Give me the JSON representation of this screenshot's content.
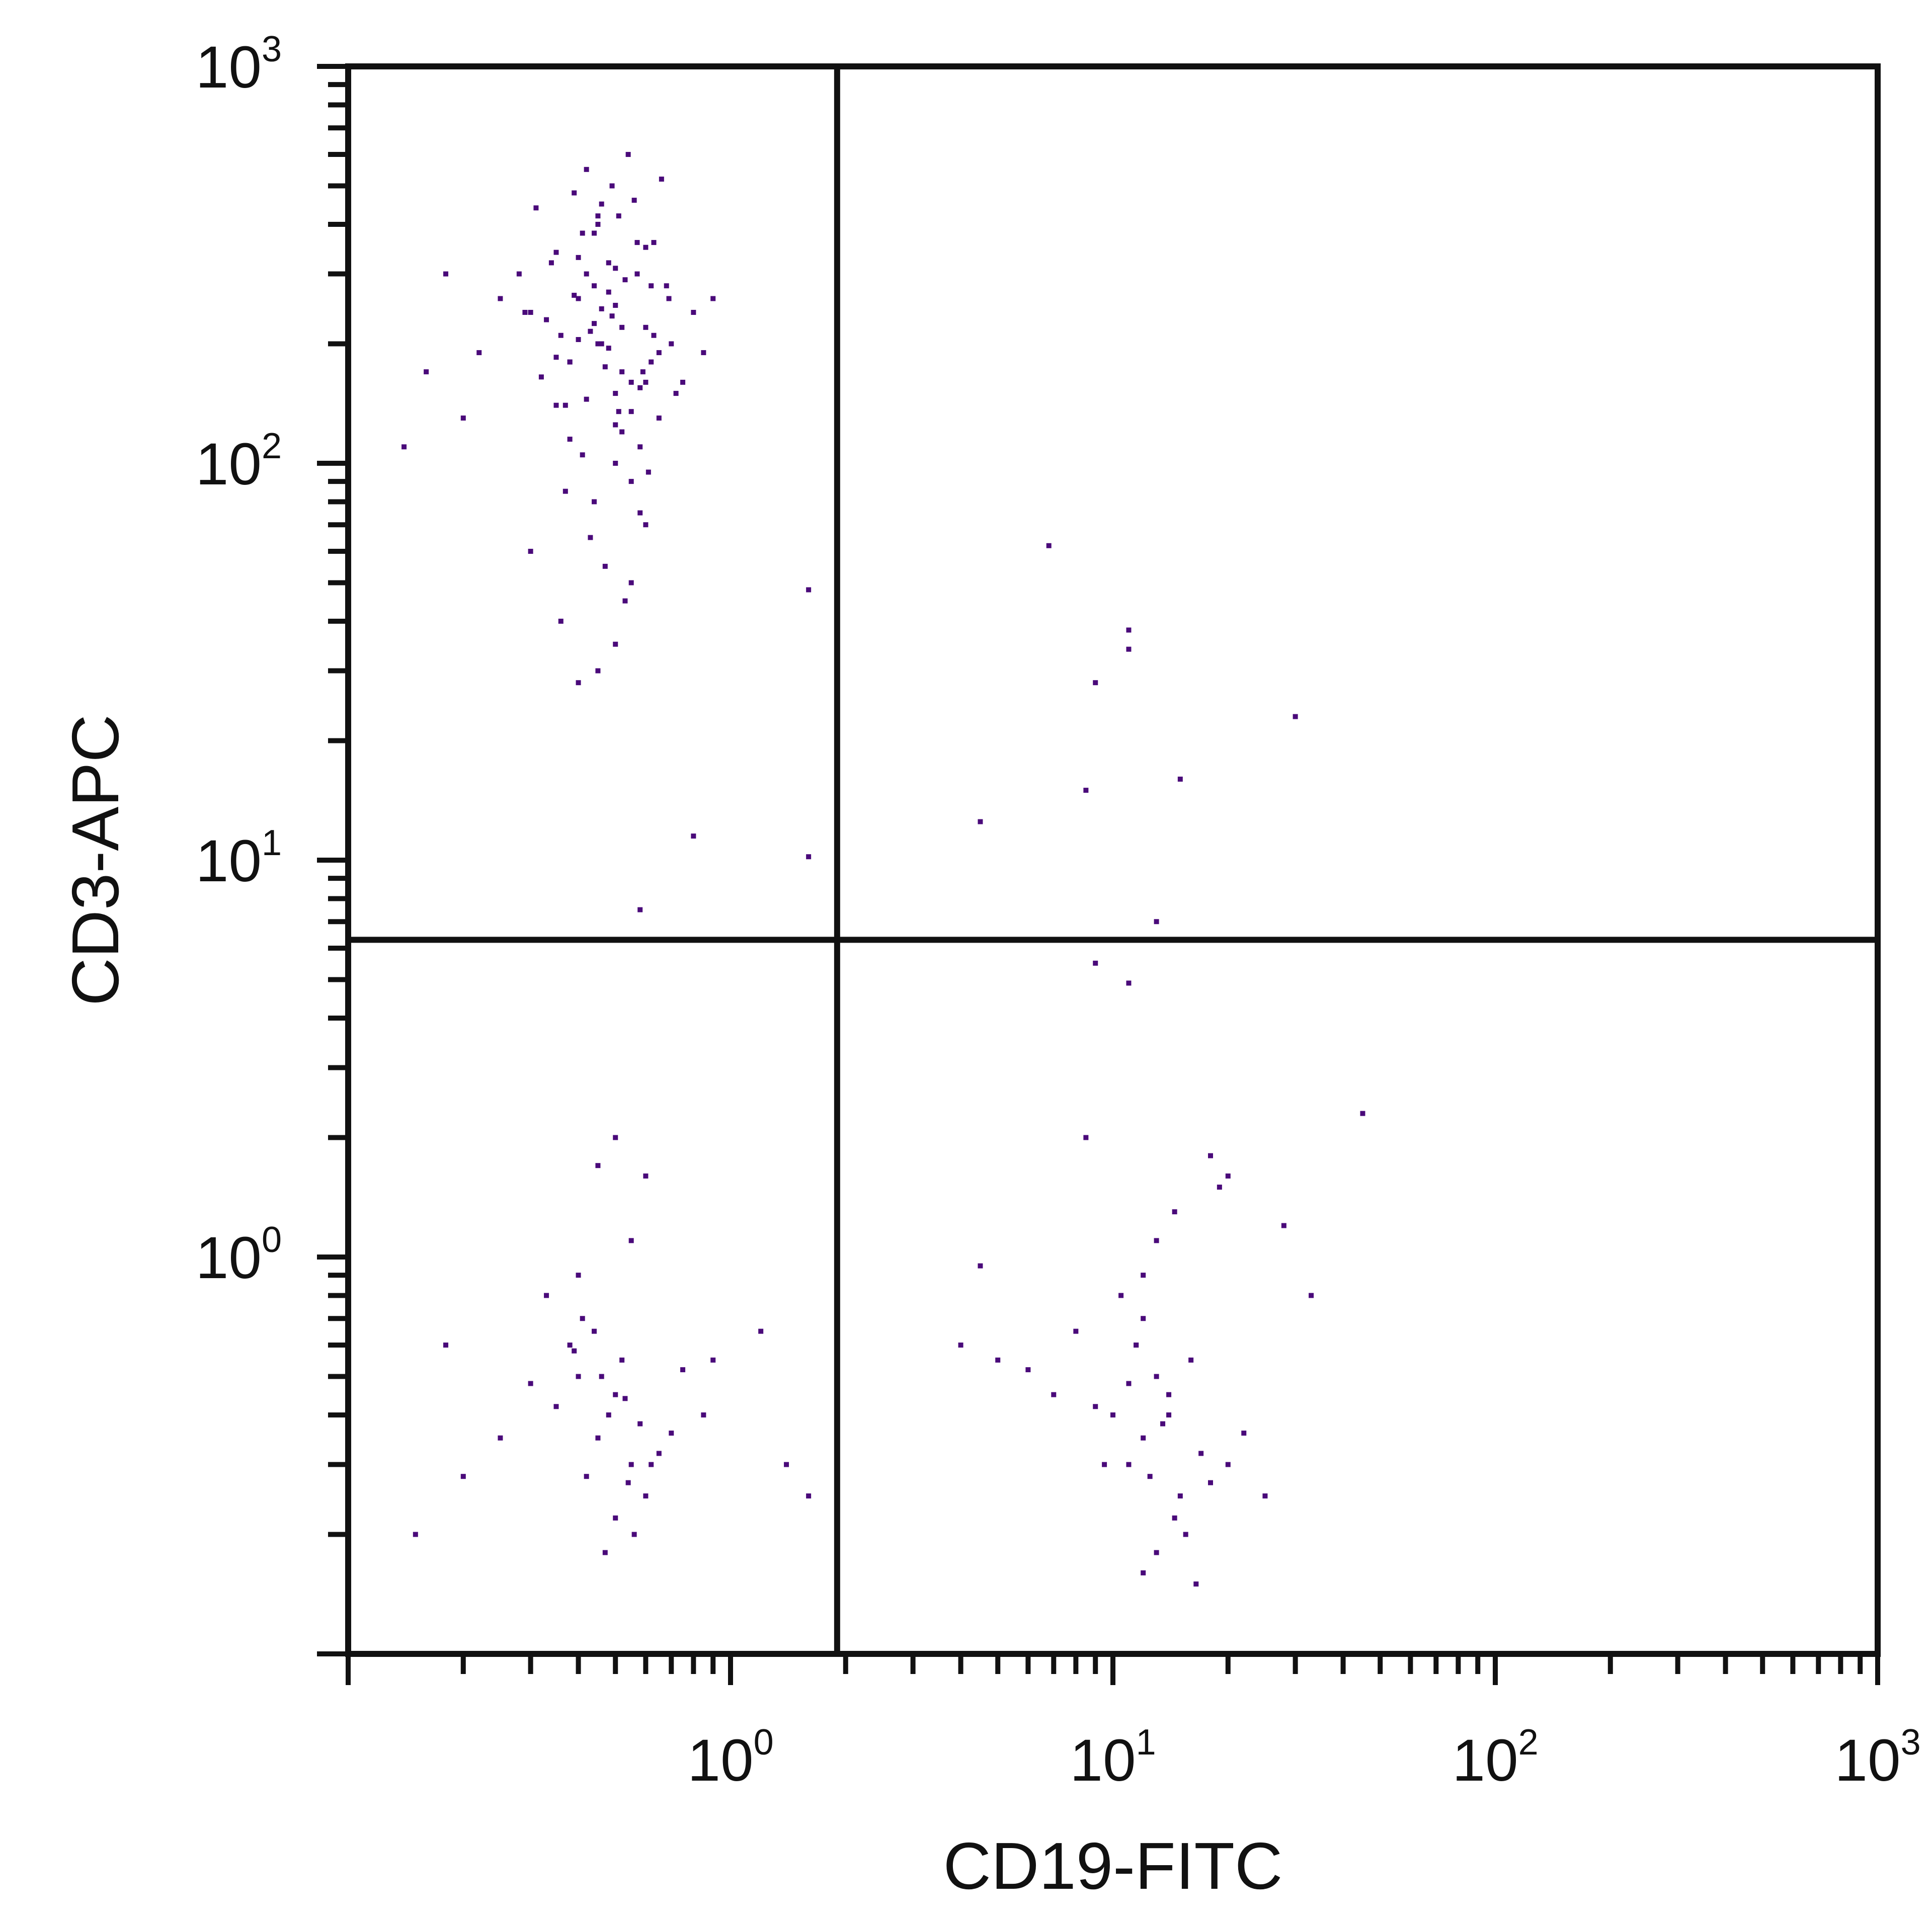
{
  "chart_data": {
    "type": "scatter",
    "title": "",
    "xlabel": "CD19-FITC",
    "ylabel": "CD3-APC",
    "x_scale": "log",
    "y_scale": "log",
    "xlim": [
      0.1,
      1000
    ],
    "ylim": [
      0.1,
      1000
    ],
    "x_ticks": [
      {
        "value": 1,
        "base": "10",
        "exp": "0"
      },
      {
        "value": 10,
        "base": "10",
        "exp": "1"
      },
      {
        "value": 100,
        "base": "10",
        "exp": "2"
      },
      {
        "value": 1000,
        "base": "10",
        "exp": "3"
      }
    ],
    "y_ticks": [
      {
        "value": 1,
        "base": "10",
        "exp": "0"
      },
      {
        "value": 10,
        "base": "10",
        "exp": "1"
      },
      {
        "value": 100,
        "base": "10",
        "exp": "2"
      },
      {
        "value": 1000,
        "base": "10",
        "exp": "3"
      }
    ],
    "quadrant_gates": {
      "x": 1.9,
      "y": 6.3
    },
    "grid": false,
    "colors": {
      "points": "#4a0a7a",
      "dense": "#3b0a70",
      "axes": "#111111"
    },
    "series": [
      {
        "x": [
          0.45,
          0.5,
          0.38,
          0.55,
          0.42,
          0.6,
          0.35,
          0.48,
          0.52,
          0.4,
          0.65,
          0.3,
          0.58,
          0.44,
          0.5,
          0.36,
          0.62,
          0.47,
          0.4,
          0.55,
          0.33,
          0.7,
          0.45,
          0.5,
          0.28,
          0.52,
          0.42,
          0.6,
          0.38,
          0.48,
          0.75,
          0.25,
          0.55,
          0.44,
          0.35,
          0.65,
          0.5,
          0.4,
          0.58,
          0.46,
          0.32,
          0.68,
          0.5,
          0.43,
          0.57,
          0.37,
          0.62,
          0.49,
          0.41,
          0.53,
          0.8,
          0.22,
          0.46,
          0.59,
          0.39,
          0.51,
          0.44,
          0.63,
          0.34,
          0.72,
          0.18,
          0.14,
          0.16,
          0.2,
          0.9,
          0.85,
          0.3,
          0.6,
          0.55,
          0.36,
          0.45,
          0.5,
          0.4,
          0.47,
          0.53,
          0.43,
          0.58,
          0.37,
          0.61,
          0.49,
          0.42,
          0.54,
          0.39,
          0.66,
          0.31,
          0.56,
          0.45,
          0.51,
          0.41,
          0.63,
          0.35,
          0.48,
          0.57,
          0.44,
          0.69,
          0.29,
          0.52,
          0.46,
          0.38,
          0.6,
          1.6,
          1.6,
          0.8,
          0.58
        ],
        "y": [
          200,
          250,
          180,
          160,
          300,
          220,
          140,
          270,
          120,
          330,
          190,
          240,
          110,
          380,
          150,
          210,
          280,
          175,
          260,
          135,
          230,
          200,
          420,
          100,
          300,
          170,
          145,
          350,
          115,
          195,
          160,
          260,
          90,
          225,
          185,
          130,
          310,
          205,
          155,
          245,
          165,
          280,
          125,
          215,
          360,
          140,
          180,
          235,
          105,
          290,
          240,
          190,
          450,
          170,
          265,
          135,
          80,
          210,
          320,
          150,
          300,
          110,
          170,
          130,
          260,
          190,
          60,
          70,
          50,
          40,
          30,
          35,
          28,
          55,
          45,
          65,
          75,
          85,
          95,
          500,
          550,
          600,
          480,
          520,
          440,
          460,
          400,
          420,
          380,
          360,
          340,
          320,
          300,
          280,
          260,
          240,
          220,
          200,
          180,
          160,
          48,
          10.2,
          11.5,
          7.5
        ]
      },
      {
        "x": [
          0.45,
          0.5,
          0.55,
          0.4,
          0.6,
          0.48,
          0.52,
          0.42,
          0.58,
          0.38,
          0.65,
          0.35,
          0.5,
          0.46,
          0.54,
          0.44,
          0.7,
          0.3,
          0.56,
          0.41,
          0.62,
          0.47,
          0.53,
          0.39,
          0.33,
          0.75,
          0.25,
          0.85,
          0.2,
          0.18,
          0.15,
          1.2,
          1.4,
          1.6,
          0.9,
          0.5,
          0.55,
          0.45,
          0.6,
          0.4
        ],
        "y": [
          0.35,
          0.45,
          0.3,
          0.5,
          0.25,
          0.4,
          0.55,
          0.28,
          0.38,
          0.6,
          0.32,
          0.42,
          0.22,
          0.5,
          0.27,
          0.65,
          0.36,
          0.48,
          0.2,
          0.7,
          0.3,
          0.18,
          0.44,
          0.58,
          0.8,
          0.52,
          0.35,
          0.4,
          0.28,
          0.6,
          0.2,
          0.65,
          0.3,
          0.25,
          0.55,
          2.0,
          1.1,
          1.7,
          1.6,
          0.9
        ]
      },
      {
        "x": [
          12,
          14,
          11,
          13,
          15,
          10,
          16,
          12.5,
          13.5,
          11.5,
          17,
          9,
          14.5,
          12,
          18,
          8,
          13,
          11,
          15.5,
          10.5,
          20,
          7,
          22,
          6,
          14,
          12,
          16.5,
          9.5,
          25,
          5,
          13,
          11.5,
          19,
          8.5,
          14.5,
          28,
          4.5,
          33,
          4,
          12
        ],
        "y": [
          0.35,
          0.45,
          0.3,
          0.5,
          0.25,
          0.4,
          0.55,
          0.28,
          0.38,
          0.6,
          0.32,
          0.42,
          0.22,
          0.7,
          0.27,
          0.65,
          0.18,
          0.48,
          0.2,
          0.8,
          0.3,
          0.45,
          0.36,
          0.52,
          0.4,
          0.9,
          0.15,
          0.3,
          0.25,
          0.55,
          1.1,
          0.6,
          1.5,
          2.0,
          1.3,
          1.2,
          0.95,
          0.8,
          0.6,
          0.16
        ]
      },
      {
        "x": [
          6.8,
          11,
          11,
          9,
          30,
          8.5,
          15,
          4.5,
          13,
          9,
          11
        ],
        "y": [
          62,
          38,
          34,
          28,
          23,
          15,
          16,
          12.5,
          7,
          5.5,
          4.9
        ]
      },
      {
        "x": [
          45,
          18,
          20
        ],
        "y": [
          2.3,
          1.8,
          1.6
        ]
      }
    ]
  }
}
